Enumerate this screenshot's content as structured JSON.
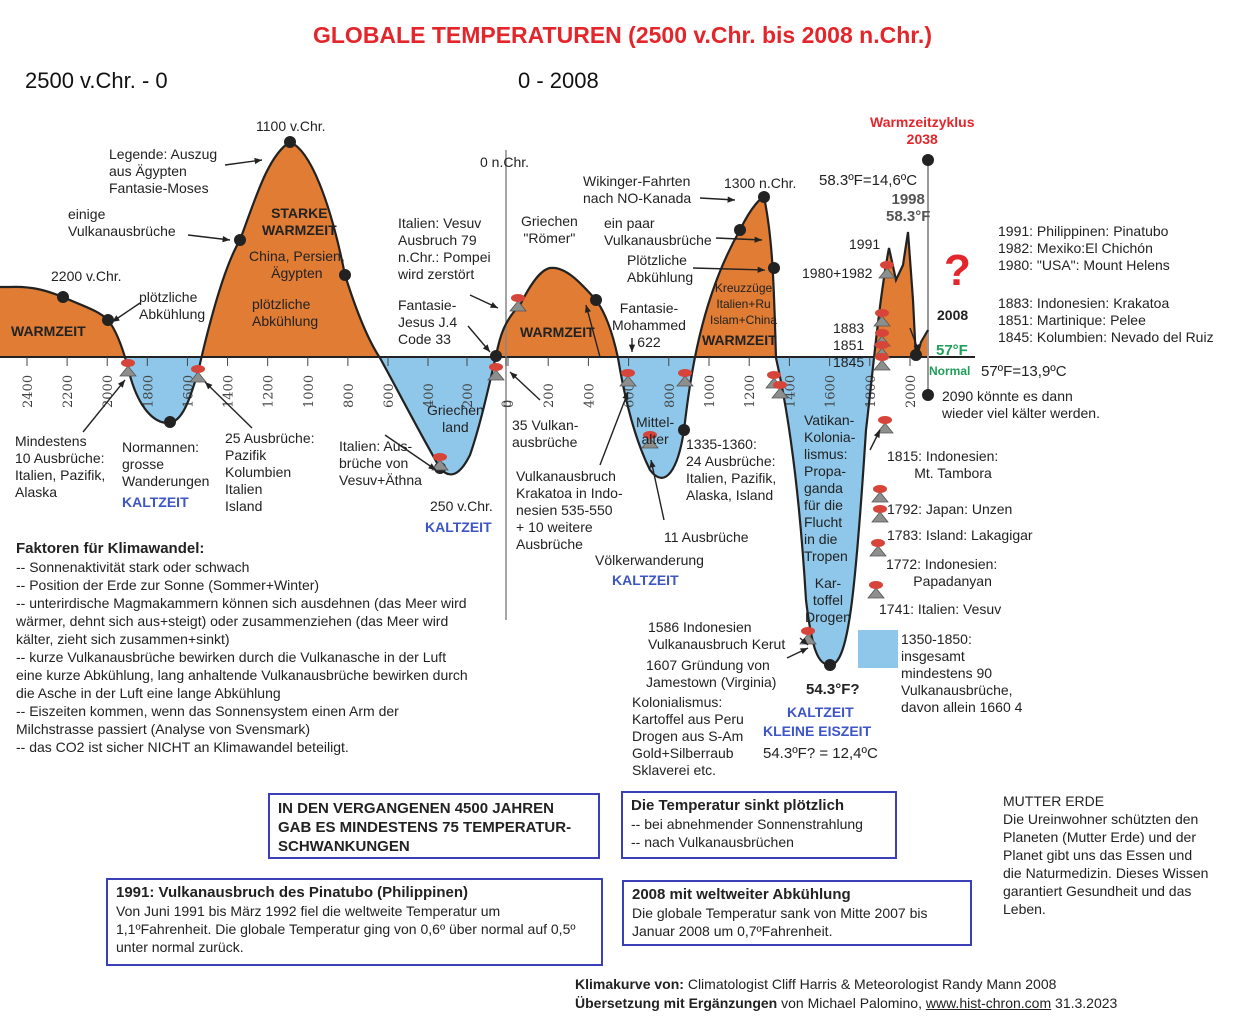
{
  "title": "GLOBALE TEMPERATUREN (2500 v.Chr. bis 2008 n.Chr.)",
  "era_left": "2500 v.Chr. - 0",
  "era_right": "0 - 2008",
  "colors": {
    "warm": "#e07c33",
    "cold": "#8ec7ea",
    "curve": "#222222",
    "accent": "#e3262b",
    "label_blue": "#3d55c6",
    "normal_green": "#1f9e5a"
  },
  "axis_left_ticks": [
    "2400",
    "2200",
    "2000",
    "1800",
    "1600",
    "1400",
    "1200",
    "1000",
    "800",
    "600"
  ],
  "axis_mid_ticks": [
    "400",
    "200",
    "0"
  ],
  "axis_right_ticks": [
    "0",
    "200",
    "400",
    "600",
    "800",
    "1000",
    "1200",
    "1400",
    "1600",
    "1800",
    "2000"
  ],
  "labels": {
    "p2200": "2200 v.Chr.",
    "p1100": "1100 v.Chr.",
    "p0": "0 n.Chr.",
    "p1300": "1300 n.Chr.",
    "warmzeit1": "WARMZEIT",
    "legende": "Legende: Auszug\naus Ägypten\nFantasie-Moses",
    "einige": "einige\nVulkanausbrüche",
    "ploetzlich1": "plötzliche\nAbkühlung",
    "starke": "STARKE\nWARMZEIT",
    "china": "China, Persien,\nÄgypten",
    "ploetzlich2": "plötzliche\nAbkühlung",
    "vesuv79": "Italien: Vesuv\nAusbruch 79\nn.Chr.: Pompei\nwird zerstört",
    "jesus": "Fantasie-\nJesus J.4\nCode 33",
    "griechen_roemer": "Griechen\n\"Römer\"",
    "warmzeit2": "WARMZEIT",
    "wikinger": "Wikinger-Fahrten\nnach NO-Kanada",
    "einpaar": "ein paar\nVulkanausbrüche",
    "ploetzlich3": "Plötzliche\nAbkühlung",
    "mohammed": "Fantasie-\nMohammed\n622",
    "kreuzzuege": "Kreuzzüge\nItalien+Ru\nIslam+China",
    "warmzeit3": "WARMZEIT",
    "mindestens10": "Mindestens\n10 Ausbrüche:\nItalien, Pazifik,\nAlaska",
    "normannen": "Normannen:\ngrosse\nWanderungen",
    "kaltzeit1": "KALTZEIT",
    "ausbrueche25": "25 Ausbrüche:\nPazifik\nKolumbien\nItalien\nIsland",
    "italien_ausbr": "Italien: Aus-\nbrüche von\nVesuv+Äthna",
    "griechenland": "Griechen\nland",
    "p250": "250 v.Chr.",
    "kaltzeit2": "KALTZEIT",
    "vulkan35": "35 Vulkan-\nausbrüche",
    "krakatoa535": "Vulkanausbruch\nKrakatoa in Indo-\nnesien 535-550\n+ 10 weitere\nAusbrüche",
    "mittelalter": "Mittel-\nalter",
    "ausbrueche11": "11 Ausbrüche",
    "voelker": "Völkerwanderung",
    "kaltzeit3": "KALTZEIT",
    "ausbr1335": "1335-1360:\n24 Ausbrüche:\nItalien, Pazifik,\nAlaska, Island",
    "vatikan": "Vatikan-\nKolonia-\nlismus:\nPropa-\nganda\nfür die\nFlucht\nin die\nTropen",
    "kartoffel": "Kar-\ntoffel\nDrogen",
    "kerut": "1586 Indonesien\nVulkanausbruch Kerut",
    "jamestown": "1607 Gründung von\nJamestown (Virginia)",
    "kolonialismus": "Kolonialismus:\nKartoffel aus Peru\nDrogen aus S-Am\nGold+Silberraub\nSklaverei etc.",
    "f543": "54.3°F?",
    "kaltzeit4": "KALTZEIT",
    "kleine_eiszeit": "KLEINE EISZEIT",
    "f543c": "54.3ºF? = 12,4ºC",
    "warmzeitzyklus": "Warmzeitzyklus\n2038",
    "f583c": "58.3ºF=14,6ºC",
    "y1998": "1998\n58.3°F",
    "y1991": "1991",
    "y1980": "1980+1982",
    "y1883": "1883\n1851\n1845",
    "y2008": "2008",
    "f57": "57°F",
    "normal": "Normal",
    "f57c": "57ºF=13,9ºC",
    "future": "2090 könnte es dann\nwieder viel kälter werden.",
    "r1991": "1991: Philippinen: Pinatubo\n1982: Mexiko:El Chichón\n1980: \"USA\": Mount Helens",
    "r1883": "1883: Indonesien: Krakatoa\n1851: Martinique: Pelee\n1845: Kolumbien: Nevado del Ruiz",
    "r1815": "1815: Indonesien:\n       Mt. Tambora",
    "r1792": "1792: Japan: Unzen",
    "r1783": "1783: Island: Lakagigar",
    "r1772": "1772: Indonesien:\n       Papadanyan",
    "r1741": "1741: Italien: Vesuv",
    "r1350": "1350-1850:\ninsgesamt\nmindestens 90\nVulkanausbrüche,\ndavon allein 1660 4"
  },
  "factors": {
    "heading": "Faktoren für Klimawandel:",
    "lines": [
      "-- Sonnenaktivität stark oder schwach",
      "-- Position der Erde zur Sonne (Sommer+Winter)",
      "-- unterirdische Magmakammern können sich ausdehnen (das Meer wird wärmer, dehnt sich aus+steigt) oder zusammenziehen (das Meer wird kälter, zieht sich zusammen+sinkt)",
      "-- kurze Vulkanausbrüche bewirken durch die Vulkanasche in der Luft eine kurze Abkühlung, lang anhaltende Vulkanausbrüche bewirken durch die Asche in der Luft eine lange Abkühlung",
      "-- Eiszeiten kommen, wenn das Sonnensystem einen Arm der Milchstrasse passiert (Analyse von Svensmark)",
      "-- das CO2 ist sicher NICHT an Klimawandel beteiligt."
    ]
  },
  "box1": {
    "text": "IN DEN VERGANGENEN 4500 JAHREN GAB ES MINDESTENS 75 TEMPERATUR-SCHWANKUNGEN"
  },
  "box2": {
    "heading": "Die Temperatur sinkt plötzlich",
    "line1": "-- bei abnehmender Sonnenstrahlung",
    "line2": "-- nach Vulkanausbrüchen"
  },
  "box3": {
    "heading": "1991: Vulkanausbruch des Pinatubo (Philippinen)",
    "text": "Von Juni 1991 bis März 1992 fiel die weltweite Temperatur um 1,1ºFahrenheit. Die globale Temperatur ging von 0,6º über normal auf 0,5º unter normal zurück."
  },
  "box4": {
    "heading": "2008 mit weltweiter Abkühlung",
    "text": "Die globale Temperatur sank von Mitte 2007 bis Januar 2008 um 0,7ºFahrenheit."
  },
  "mutter": {
    "heading": "MUTTER ERDE",
    "text": "Die Ureinwohner schützten den Planeten (Mutter Erde) und der Planet gibt uns das Essen und die Naturmedizin. Dieses Wissen garantiert Gesundheit und das Leben."
  },
  "credits": {
    "line1_bold": "Klimakurve von:",
    "line1_rest": " Climatologist Cliff Harris & Meteorologist Randy Mann 2008",
    "line2_bold": "Übersetzung mit Ergänzungen",
    "line2_mid": " von Michael Palomino, ",
    "line2_link": "www.hist-chron.com",
    "line2_date": " 31.3.2023"
  }
}
